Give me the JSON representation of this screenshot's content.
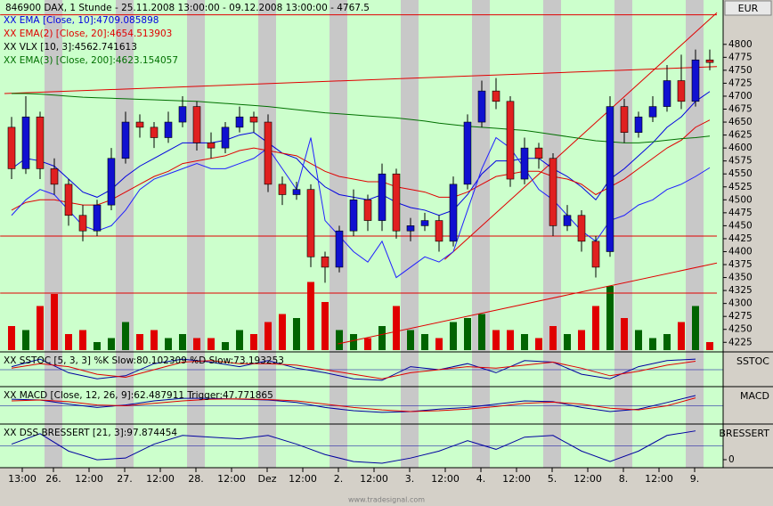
{
  "chart_data": {
    "type": "candlestick",
    "title": "846900  DAX, 1 Stunde - 25.11.2008 13:00:00 - 09.12.2008 13:00:00 - 4767.5",
    "currency": "EUR",
    "watermark": "www.tradesignal.com",
    "x_labels": [
      "13:00",
      "26.",
      "12:00",
      "27.",
      "12:00",
      "28.",
      "12:00",
      "Dez",
      "12:00",
      "2.",
      "12:00",
      "3.",
      "12:00",
      "4.",
      "12:00",
      "5.",
      "12:00",
      "8.",
      "12:00",
      "9."
    ],
    "ylim": [
      4210,
      4877
    ],
    "yticks": [
      4225,
      4250,
      4275,
      4300,
      4325,
      4350,
      4375,
      4400,
      4425,
      4450,
      4475,
      4500,
      4525,
      4550,
      4575,
      4600,
      4625,
      4650,
      4675,
      4700,
      4725,
      4750,
      4775,
      4800
    ],
    "open": [
      4640,
      4560,
      4660,
      4560,
      4530,
      4470,
      4440,
      4490,
      4580,
      4650,
      4640,
      4620,
      4650,
      4680,
      4610,
      4600,
      4640,
      4660,
      4650,
      4530,
      4510,
      4520,
      4390,
      4370,
      4440,
      4500,
      4460,
      4550,
      4440,
      4450,
      4460,
      4420,
      4530,
      4650,
      4710,
      4690,
      4540,
      4600,
      4580,
      4450,
      4470,
      4420,
      4400,
      4680,
      4630,
      4660,
      4680,
      4730,
      4690,
      4770
    ],
    "high": [
      4660,
      4700,
      4670,
      4580,
      4540,
      4490,
      4500,
      4600,
      4670,
      4665,
      4650,
      4670,
      4700,
      4690,
      4630,
      4650,
      4680,
      4670,
      4665,
      4545,
      4535,
      4530,
      4400,
      4450,
      4520,
      4510,
      4570,
      4560,
      4465,
      4475,
      4470,
      4545,
      4665,
      4730,
      4735,
      4700,
      4620,
      4610,
      4590,
      4490,
      4480,
      4430,
      4700,
      4695,
      4670,
      4700,
      4760,
      4780,
      4790,
      4790
    ],
    "low": [
      4540,
      4550,
      4540,
      4510,
      4450,
      4420,
      4430,
      4480,
      4570,
      4620,
      4600,
      4610,
      4640,
      4595,
      4580,
      4590,
      4630,
      4630,
      4515,
      4490,
      4500,
      4370,
      4340,
      4360,
      4430,
      4440,
      4440,
      4425,
      4420,
      4440,
      4400,
      4410,
      4520,
      4640,
      4675,
      4525,
      4530,
      4560,
      4430,
      4440,
      4400,
      4350,
      4390,
      4610,
      4620,
      4650,
      4670,
      4675,
      4680,
      4750
    ],
    "close": [
      4560,
      4660,
      4560,
      4530,
      4470,
      4440,
      4490,
      4580,
      4650,
      4640,
      4620,
      4650,
      4680,
      4610,
      4600,
      4640,
      4660,
      4650,
      4530,
      4510,
      4520,
      4390,
      4370,
      4440,
      4500,
      4460,
      4550,
      4440,
      4450,
      4460,
      4420,
      4530,
      4650,
      4710,
      4690,
      4540,
      4600,
      4580,
      4450,
      4470,
      4420,
      4370,
      4680,
      4630,
      4660,
      4680,
      4730,
      4690,
      4770,
      4765
    ],
    "up_color": "#1010d0",
    "down_color": "#e02020",
    "volume": [
      30,
      25,
      55,
      70,
      20,
      25,
      10,
      15,
      35,
      20,
      25,
      15,
      20,
      15,
      15,
      10,
      25,
      20,
      35,
      45,
      40,
      85,
      60,
      25,
      20,
      15,
      30,
      55,
      25,
      20,
      15,
      35,
      40,
      45,
      25,
      25,
      20,
      15,
      30,
      20,
      25,
      55,
      80,
      40,
      25,
      15,
      20,
      35,
      55,
      10
    ],
    "series": [
      {
        "name": "XX EMA [Close, 10]:4709.085898",
        "color": "#0000e0",
        "values": [
          4560,
          4580,
          4575,
          4565,
          4540,
          4515,
          4505,
          4520,
          4545,
          4565,
          4580,
          4595,
          4610,
          4610,
          4610,
          4615,
          4625,
          4630,
          4610,
          4590,
          4580,
          4550,
          4525,
          4510,
          4505,
          4500,
          4510,
          4495,
          4485,
          4480,
          4470,
          4480,
          4510,
          4550,
          4575,
          4575,
          4580,
          4580,
          4560,
          4545,
          4525,
          4500,
          4540,
          4560,
          4585,
          4610,
          4640,
          4660,
          4690,
          4709
        ]
      },
      {
        "name": "XX EMA(2) [Close, 20]:4654.513903",
        "color": "#e00000",
        "values": [
          4480,
          4495,
          4500,
          4500,
          4495,
          4490,
          4490,
          4500,
          4515,
          4530,
          4545,
          4555,
          4570,
          4575,
          4580,
          4585,
          4595,
          4600,
          4595,
          4590,
          4585,
          4570,
          4555,
          4545,
          4540,
          4535,
          4535,
          4525,
          4520,
          4515,
          4505,
          4505,
          4515,
          4530,
          4545,
          4550,
          4555,
          4555,
          4545,
          4540,
          4530,
          4510,
          4525,
          4540,
          4560,
          4580,
          4600,
          4615,
          4640,
          4654
        ]
      },
      {
        "name": "XX VLX [10, 3]:4562.741613",
        "color": "#2020ff",
        "values": [
          4470,
          4500,
          4520,
          4510,
          4480,
          4450,
          4440,
          4450,
          4480,
          4520,
          4540,
          4550,
          4560,
          4570,
          4560,
          4560,
          4570,
          4580,
          4600,
          4560,
          4520,
          4620,
          4460,
          4430,
          4400,
          4380,
          4420,
          4350,
          4370,
          4390,
          4380,
          4400,
          4480,
          4560,
          4620,
          4600,
          4560,
          4520,
          4500,
          4470,
          4440,
          4420,
          4460,
          4470,
          4490,
          4500,
          4520,
          4530,
          4545,
          4562
        ]
      },
      {
        "name": "XX EMA(3) [Close, 200]:4623.154057",
        "color": "#007000",
        "values": [
          4705,
          4705,
          4704,
          4702,
          4700,
          4698,
          4697,
          4696,
          4695,
          4694,
          4693,
          4692,
          4691,
          4690,
          4688,
          4686,
          4684,
          4682,
          4680,
          4677,
          4674,
          4671,
          4668,
          4666,
          4664,
          4662,
          4660,
          4658,
          4655,
          4652,
          4648,
          4645,
          4642,
          4640,
          4638,
          4636,
          4634,
          4630,
          4626,
          4622,
          4618,
          4614,
          4612,
          4610,
          4610,
          4612,
          4615,
          4618,
          4620,
          4623
        ]
      }
    ],
    "trendlines": [
      {
        "from": [
          -0.8,
          4857
        ],
        "to": [
          49.5,
          4857
        ]
      },
      {
        "from": [
          -0.8,
          4430
        ],
        "to": [
          49.5,
          4430
        ]
      },
      {
        "from": [
          -0.8,
          4320
        ],
        "to": [
          49.5,
          4320
        ]
      },
      {
        "from": [
          -0.5,
          4705
        ],
        "to": [
          49.5,
          4757
        ]
      },
      {
        "from": [
          22.9,
          4222
        ],
        "to": [
          49.5,
          4378
        ]
      },
      {
        "from": [
          30.4,
          4385
        ],
        "to": [
          49.5,
          4861
        ]
      }
    ],
    "trend_color": "#e00000",
    "panels": [
      {
        "label": "XX SSTOC [5, 3, 3] %K Slow:80.102309 %D Slow:73.193253",
        "axis_label": "SSTOC",
        "ylim": [
          0,
          100
        ],
        "series": [
          {
            "color": "#0000a0",
            "values": [
              60,
              85,
              40,
              20,
              30,
              70,
              85,
              75,
              60,
              80,
              55,
              40,
              20,
              15,
              60,
              50,
              70,
              40,
              80,
              75,
              35,
              20,
              60,
              80,
              85
            ]
          },
          {
            "color": "#e00000",
            "values": [
              55,
              70,
              60,
              35,
              25,
              50,
              75,
              80,
              70,
              70,
              65,
              50,
              35,
              20,
              40,
              50,
              60,
              55,
              65,
              75,
              55,
              30,
              45,
              65,
              78
            ]
          }
        ]
      },
      {
        "label": "XX MACD [Close, 12, 26, 9]:62.487911 Trigger:47.771865",
        "axis_label": "MACD",
        "ylim": [
          -100,
          100
        ],
        "series": [
          {
            "color": "#0000a0",
            "values": [
              40,
              35,
              10,
              -10,
              5,
              30,
              45,
              45,
              40,
              35,
              20,
              -10,
              -30,
              -40,
              -35,
              -20,
              -10,
              10,
              30,
              25,
              -10,
              -35,
              -20,
              20,
              62
            ]
          },
          {
            "color": "#e00000",
            "values": [
              30,
              35,
              25,
              5,
              0,
              15,
              30,
              40,
              42,
              38,
              30,
              10,
              -10,
              -25,
              -35,
              -30,
              -20,
              -5,
              15,
              22,
              10,
              -15,
              -25,
              0,
              48
            ]
          }
        ]
      },
      {
        "label": "XX DSS BRESSERT [21, 3]:97.874454",
        "axis_label": "BRESSERT",
        "ylim": [
          0,
          110
        ],
        "yticks": [
          0
        ],
        "series": [
          {
            "color": "#0000a0",
            "values": [
              60,
              90,
              40,
              15,
              20,
              60,
              85,
              80,
              75,
              85,
              60,
              30,
              10,
              5,
              20,
              40,
              70,
              45,
              80,
              85,
              40,
              10,
              40,
              85,
              98
            ]
          }
        ]
      }
    ]
  }
}
